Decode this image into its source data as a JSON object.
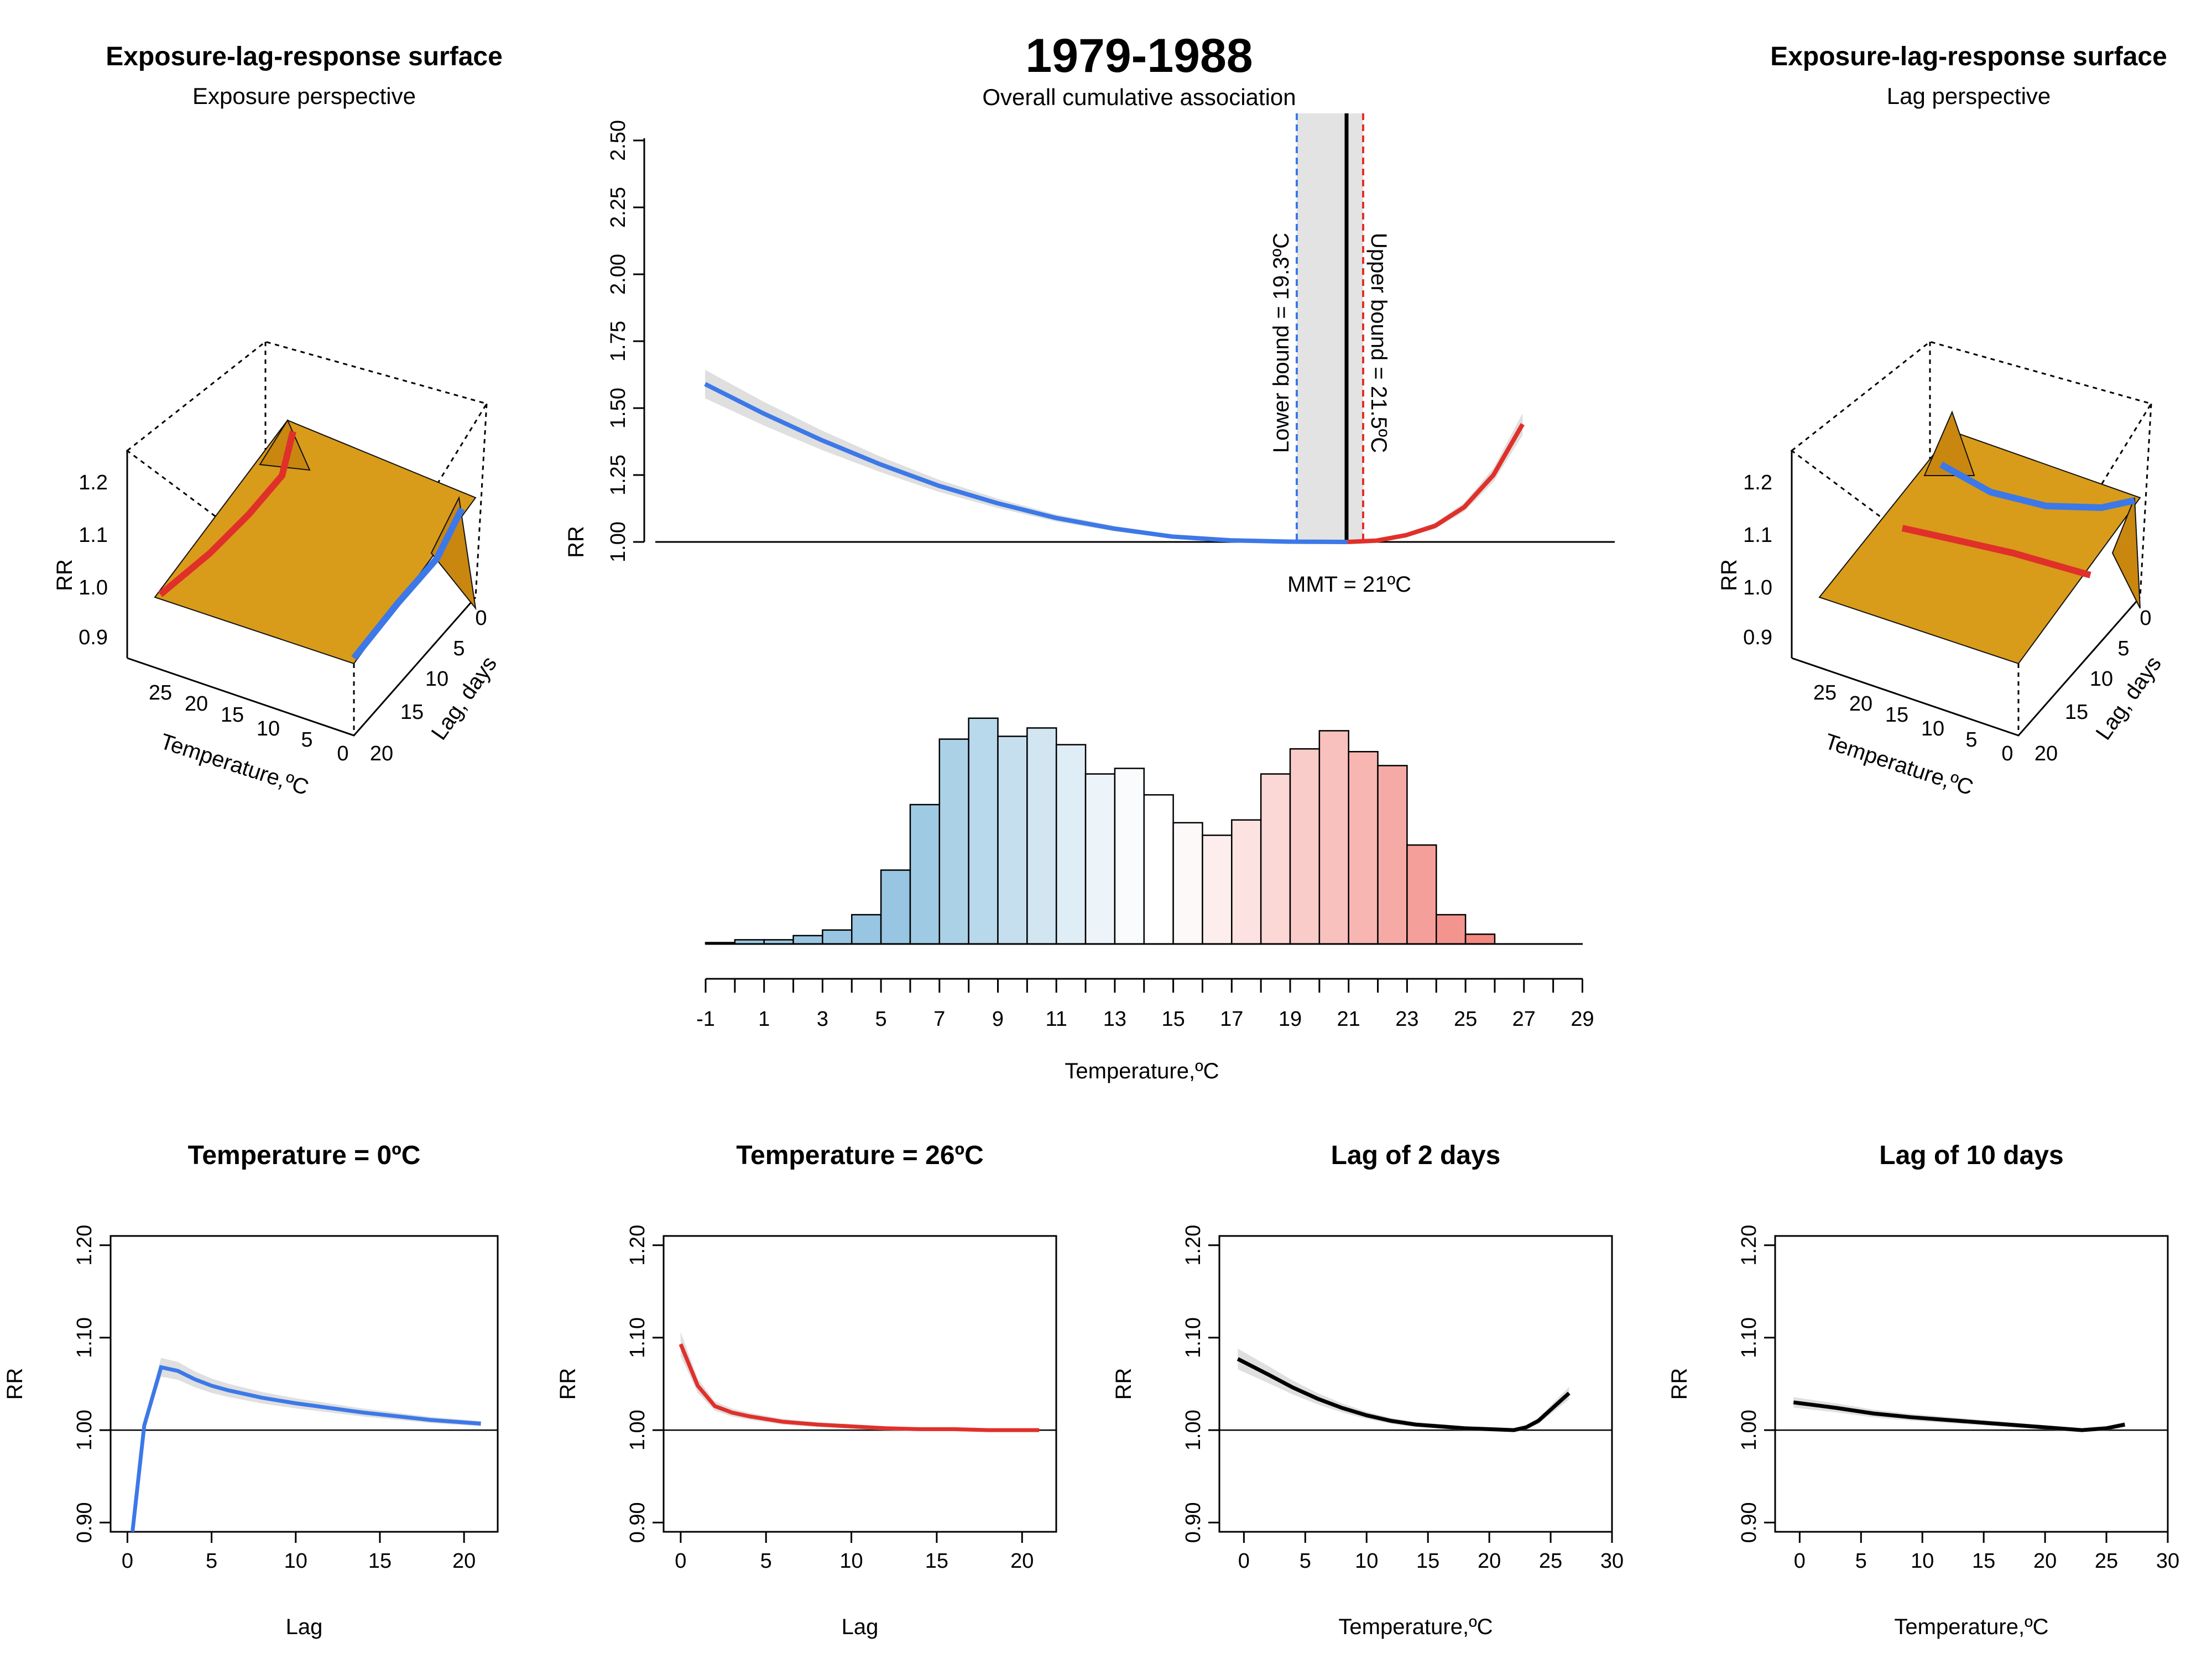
{
  "figure": {
    "main_title": "1979-1988",
    "main_subtitle": "Overall cumulative association"
  },
  "chart_data": [
    {
      "id": "surface_exposure",
      "type": "surface",
      "title": "Exposure-lag-response surface",
      "subtitle": "Exposure perspective",
      "zlabel": "RR",
      "xlabel": "Temperature,ºC",
      "ylabel": "Lag, days",
      "z_ticks": [
        "0.9",
        "1.0",
        "1.1",
        "1.2"
      ],
      "x_ticks": [
        "0",
        "5",
        "10",
        "15",
        "20",
        "25"
      ],
      "y_ticks": [
        "0",
        "5",
        "10",
        "15",
        "20"
      ],
      "highlight": [
        {
          "name": "Temperature = 26ºC",
          "color": "#e0302a"
        },
        {
          "name": "Temperature = 0ºC",
          "color": "#3c78e8"
        }
      ]
    },
    {
      "id": "overall",
      "type": "line",
      "ylabel": "RR",
      "ylim": [
        1.0,
        2.5
      ],
      "y_ticks": [
        "1.00",
        "1.25",
        "1.50",
        "1.75",
        "2.00",
        "2.25",
        "2.50"
      ],
      "xlim": [
        -1,
        29
      ],
      "mmt": 21,
      "mmt_label": "MMT = 21ºC",
      "lower_bound": 19.3,
      "lower_label": "Lower bound = 19.3ºC",
      "upper_bound": 21.5,
      "upper_label": "Upper bound = 21.5ºC",
      "series": [
        {
          "color": "#3c78e8",
          "x": [
            -1,
            1,
            3,
            5,
            7,
            9,
            11,
            13,
            15,
            17,
            19,
            21
          ],
          "y": [
            1.59,
            1.48,
            1.38,
            1.29,
            1.21,
            1.145,
            1.09,
            1.05,
            1.02,
            1.006,
            1.001,
            1.0
          ]
        },
        {
          "color": "#e0302a",
          "x": [
            21,
            22,
            23,
            24,
            25,
            26,
            27
          ],
          "y": [
            1.0,
            1.005,
            1.025,
            1.06,
            1.13,
            1.25,
            1.44
          ]
        }
      ]
    },
    {
      "id": "histogram",
      "type": "bar",
      "xlabel": "Temperature,ºC",
      "x_ticks": [
        "-1",
        "1",
        "3",
        "5",
        "7",
        "9",
        "11",
        "13",
        "15",
        "17",
        "19",
        "21",
        "23",
        "25",
        "27",
        "29"
      ],
      "bin_start": -1,
      "bin_width": 1,
      "values": [
        1,
        3,
        3,
        6,
        10,
        21,
        53,
        100,
        147,
        162,
        149,
        155,
        143,
        122,
        126,
        107,
        87,
        78,
        89,
        122,
        140,
        153,
        138,
        128,
        71,
        21,
        7
      ],
      "color_low": "#98c6e2",
      "color_mid": "#ffffff",
      "color_high": "#f2837c"
    },
    {
      "id": "surface_lag",
      "type": "surface",
      "title": "Exposure-lag-response surface",
      "subtitle": "Lag perspective",
      "zlabel": "RR",
      "xlabel": "Temperature,ºC",
      "ylabel": "Lag, days",
      "z_ticks": [
        "0.9",
        "1.0",
        "1.1",
        "1.2"
      ],
      "x_ticks": [
        "0",
        "5",
        "10",
        "15",
        "20",
        "25"
      ],
      "y_ticks": [
        "0",
        "5",
        "10",
        "15",
        "20"
      ],
      "highlight": [
        {
          "name": "Lag of 2 days",
          "color": "#3c78e8"
        },
        {
          "name": "Lag of 10 days",
          "color": "#e0302a"
        }
      ]
    },
    {
      "id": "p1",
      "type": "line",
      "title": "Temperature = 0ºC",
      "xlabel": "Lag",
      "ylabel": "RR",
      "ylim": [
        0.89,
        1.21
      ],
      "y_ticks": [
        "0.90",
        "1.00",
        "1.10",
        "1.20"
      ],
      "xlim": [
        -1,
        22
      ],
      "x_ticks": [
        "0",
        "5",
        "10",
        "15",
        "20"
      ],
      "color": "#3c78e8",
      "x": [
        0.3,
        1,
        2,
        3,
        4,
        5,
        6,
        8,
        10,
        12,
        14,
        16,
        18,
        21
      ],
      "y": [
        0.89,
        1.005,
        1.068,
        1.064,
        1.055,
        1.048,
        1.043,
        1.035,
        1.029,
        1.024,
        1.019,
        1.015,
        1.011,
        1.007
      ]
    },
    {
      "id": "p2",
      "type": "line",
      "title": "Temperature = 26ºC",
      "xlabel": "Lag",
      "ylabel": "RR",
      "ylim": [
        0.89,
        1.21
      ],
      "y_ticks": [
        "0.90",
        "1.00",
        "1.10",
        "1.20"
      ],
      "xlim": [
        -1,
        22
      ],
      "x_ticks": [
        "0",
        "5",
        "10",
        "15",
        "20"
      ],
      "color": "#e0302a",
      "x": [
        0,
        1,
        2,
        3,
        4,
        5,
        6,
        8,
        10,
        12,
        14,
        16,
        18,
        21
      ],
      "y": [
        1.093,
        1.048,
        1.026,
        1.019,
        1.015,
        1.012,
        1.009,
        1.006,
        1.004,
        1.002,
        1.001,
        1.001,
        1.0,
        1.0
      ]
    },
    {
      "id": "p3",
      "type": "line",
      "title": "Lag of 2 days",
      "xlabel": "Temperature,ºC",
      "ylabel": "RR",
      "ylim": [
        0.89,
        1.21
      ],
      "y_ticks": [
        "0.90",
        "1.00",
        "1.10",
        "1.20"
      ],
      "xlim": [
        -2,
        30
      ],
      "x_ticks": [
        "0",
        "5",
        "10",
        "15",
        "20",
        "25",
        "30"
      ],
      "color": "#000000",
      "x": [
        -0.5,
        2,
        4,
        6,
        8,
        10,
        12,
        14,
        16,
        18,
        20,
        22,
        23,
        24,
        25,
        26.5
      ],
      "y": [
        1.077,
        1.06,
        1.046,
        1.034,
        1.024,
        1.016,
        1.01,
        1.006,
        1.004,
        1.002,
        1.001,
        1.0,
        1.003,
        1.01,
        1.022,
        1.04
      ]
    },
    {
      "id": "p4",
      "type": "line",
      "title": "Lag of 10 days",
      "xlabel": "Temperature,ºC",
      "ylabel": "RR",
      "ylim": [
        0.89,
        1.21
      ],
      "y_ticks": [
        "0.90",
        "1.00",
        "1.10",
        "1.20"
      ],
      "xlim": [
        -2,
        30
      ],
      "x_ticks": [
        "0",
        "5",
        "10",
        "15",
        "20",
        "25",
        "30"
      ],
      "color": "#000000",
      "x": [
        -0.5,
        3,
        6,
        9,
        12,
        15,
        18,
        21,
        23,
        25,
        26.5
      ],
      "y": [
        1.03,
        1.024,
        1.018,
        1.014,
        1.011,
        1.008,
        1.005,
        1.002,
        1.0,
        1.002,
        1.006
      ]
    }
  ]
}
